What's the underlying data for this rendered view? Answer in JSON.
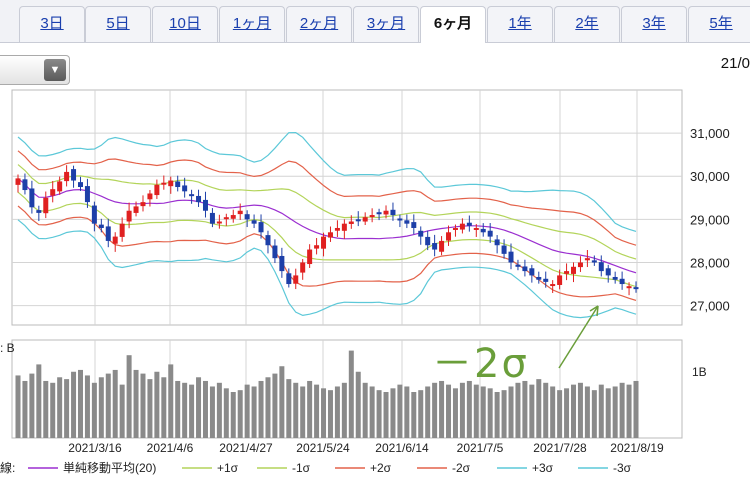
{
  "tabs": [
    "3日",
    "5日",
    "10日",
    "1ヶ月",
    "2ヶ月",
    "3ヶ月",
    "6ヶ月",
    "1年",
    "2年",
    "3年",
    "5年"
  ],
  "active_tab": "6ヶ月",
  "date_label": "21/0",
  "colors": {
    "up": "#e02020",
    "down": "#1d3fa8",
    "sma": "#9b2fd0",
    "sigma1": "#b3d45a",
    "sigma2": "#e3624a",
    "sigma3": "#5cc8d8",
    "volume": "#8a8a8a",
    "annotation": "#6a9e3a"
  },
  "annotation_text": "－2σ",
  "volume_unit": "1B",
  "volume_label": ": B",
  "legend": {
    "prefix": "線:",
    "items": [
      {
        "label": "単純移動平均(20)",
        "color": "#9b2fd0"
      },
      {
        "label": "+1σ",
        "color": "#b3d45a"
      },
      {
        "label": "-1σ",
        "color": "#b3d45a"
      },
      {
        "label": "+2σ",
        "color": "#e3624a"
      },
      {
        "label": "-2σ",
        "color": "#e3624a"
      },
      {
        "label": "+3σ",
        "color": "#5cc8d8"
      },
      {
        "label": "-3σ",
        "color": "#5cc8d8"
      }
    ]
  },
  "chart_data": {
    "type": "candlestick",
    "y_ticks": [
      "31,000",
      "30,000",
      "29,000",
      "28,000",
      "27,000"
    ],
    "y_tick_values": [
      31000,
      30000,
      29000,
      28000,
      27000
    ],
    "ylim": [
      26550,
      32000
    ],
    "x_tick_labels": [
      "2021/3/16",
      "2021/4/6",
      "2021/4/27",
      "2021/5/24",
      "2021/6/14",
      "2021/7/5",
      "2021/7/28",
      "2021/8/19"
    ],
    "close": [
      29950,
      29680,
      29280,
      29150,
      29500,
      29700,
      29880,
      30100,
      29900,
      29750,
      29400,
      28900,
      28800,
      28500,
      28600,
      28900,
      29200,
      29300,
      29400,
      29600,
      29800,
      29850,
      29900,
      29750,
      29650,
      29550,
      29400,
      29200,
      28900,
      28950,
      29050,
      29100,
      29200,
      29000,
      28900,
      28700,
      28400,
      28100,
      27800,
      27500,
      27700,
      28000,
      28300,
      28400,
      28600,
      28700,
      28800,
      28900,
      28950,
      29000,
      29050,
      29100,
      29150,
      29200,
      29100,
      29000,
      28900,
      28800,
      28600,
      28400,
      28300,
      28500,
      28700,
      28800,
      28900,
      28850,
      28800,
      28700,
      28600,
      28400,
      28200,
      28000,
      27900,
      27800,
      27700,
      27600,
      27550,
      27500,
      27700,
      27800,
      27900,
      28000,
      28100,
      28000,
      27800,
      27700,
      27600,
      27500,
      27450,
      27400
    ]
  },
  "volume_data": [
    0.68,
    0.62,
    0.7,
    0.8,
    0.62,
    0.6,
    0.66,
    0.64,
    0.72,
    0.74,
    0.68,
    0.6,
    0.66,
    0.7,
    0.74,
    0.58,
    0.9,
    0.74,
    0.7,
    0.64,
    0.72,
    0.66,
    0.8,
    0.62,
    0.6,
    0.58,
    0.66,
    0.62,
    0.56,
    0.6,
    0.54,
    0.5,
    0.52,
    0.58,
    0.56,
    0.62,
    0.66,
    0.7,
    0.78,
    0.64,
    0.6,
    0.56,
    0.62,
    0.58,
    0.54,
    0.52,
    0.56,
    0.6,
    0.95,
    0.72,
    0.6,
    0.56,
    0.52,
    0.5,
    0.54,
    0.58,
    0.56,
    0.5,
    0.52,
    0.56,
    0.6,
    0.62,
    0.58,
    0.54,
    0.6,
    0.62,
    0.58,
    0.56,
    0.54,
    0.5,
    0.52,
    0.56,
    0.6,
    0.62,
    0.58,
    0.64,
    0.6,
    0.56,
    0.52,
    0.54,
    0.58,
    0.6,
    0.56,
    0.52,
    0.58,
    0.54,
    0.56,
    0.6,
    0.58,
    0.62
  ]
}
